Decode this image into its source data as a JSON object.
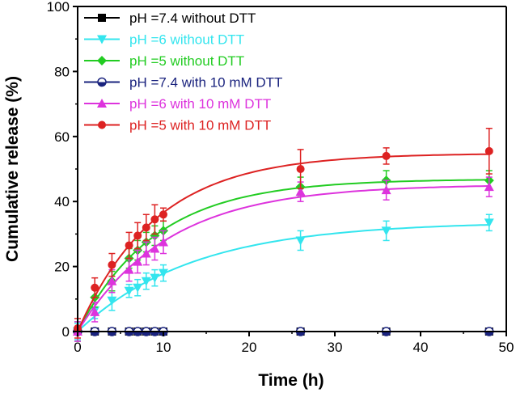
{
  "chart_data": {
    "type": "line",
    "xlabel": "Time (h)",
    "ylabel": "Cumulative release (%)",
    "xlim": [
      0,
      50
    ],
    "ylim": [
      0,
      100
    ],
    "xticks": [
      0,
      10,
      20,
      30,
      40,
      50
    ],
    "yticks": [
      0,
      20,
      40,
      60,
      80,
      100
    ],
    "grid": false,
    "legend_position": "top-left",
    "x": [
      0,
      2,
      4,
      6,
      7,
      8,
      9,
      10,
      26,
      36,
      48
    ],
    "series": [
      {
        "name": "pH =7.4 without DTT",
        "color": "#000000",
        "marker": "square",
        "values": [
          0,
          0,
          0,
          0,
          0,
          0,
          0,
          0,
          0,
          0,
          0
        ],
        "errors": [
          0.5,
          0.5,
          0.5,
          0.5,
          0.5,
          0.5,
          0.5,
          0.5,
          0.5,
          0.5,
          0.5
        ]
      },
      {
        "name": "pH =6 without DTT",
        "color": "#33e5ee",
        "marker": "triangle-down",
        "values": [
          0,
          6.5,
          9.5,
          12.5,
          13.5,
          15.5,
          16.5,
          18,
          28,
          31,
          33.5
        ],
        "errors": [
          2.5,
          2.5,
          3,
          2,
          2.5,
          2.5,
          2.5,
          2.5,
          3,
          3,
          2.5
        ]
      },
      {
        "name": "pH =5 without DTT",
        "color": "#22cc22",
        "marker": "diamond",
        "values": [
          0,
          10.5,
          15.5,
          22.5,
          25,
          27.5,
          29.5,
          31,
          44.5,
          46.5,
          46.5
        ],
        "errors": [
          3,
          3,
          3,
          3,
          3,
          3,
          3,
          3,
          3,
          3,
          3
        ]
      },
      {
        "name": "pH =7.4 with 10 mM DTT",
        "color": "#1a237e",
        "marker": "circle-half",
        "values": [
          0,
          0,
          0,
          0,
          0,
          0,
          0,
          0,
          0,
          0,
          0
        ],
        "errors": [
          0.5,
          0.5,
          0.5,
          0.5,
          0.5,
          0.5,
          0.5,
          0.5,
          0.5,
          0.5,
          0.5
        ]
      },
      {
        "name": "pH =6 with 10 mM DTT",
        "color": "#dd33dd",
        "marker": "triangle-up",
        "values": [
          0,
          6,
          15.5,
          19,
          21.5,
          24,
          25.5,
          27.5,
          43,
          43.5,
          44.5
        ],
        "errors": [
          3,
          3,
          3.5,
          3.5,
          3.5,
          3.5,
          3.5,
          3.5,
          3,
          3,
          3
        ]
      },
      {
        "name": "pH =5 with 10 mM DTT",
        "color": "#dd2222",
        "marker": "circle",
        "values": [
          1,
          13.5,
          20.5,
          26.5,
          29.5,
          32,
          34.5,
          36,
          50,
          54,
          55.5
        ],
        "errors": [
          3,
          3,
          3.5,
          4,
          4,
          4,
          4.5,
          2,
          6,
          2.5,
          7
        ]
      }
    ]
  }
}
